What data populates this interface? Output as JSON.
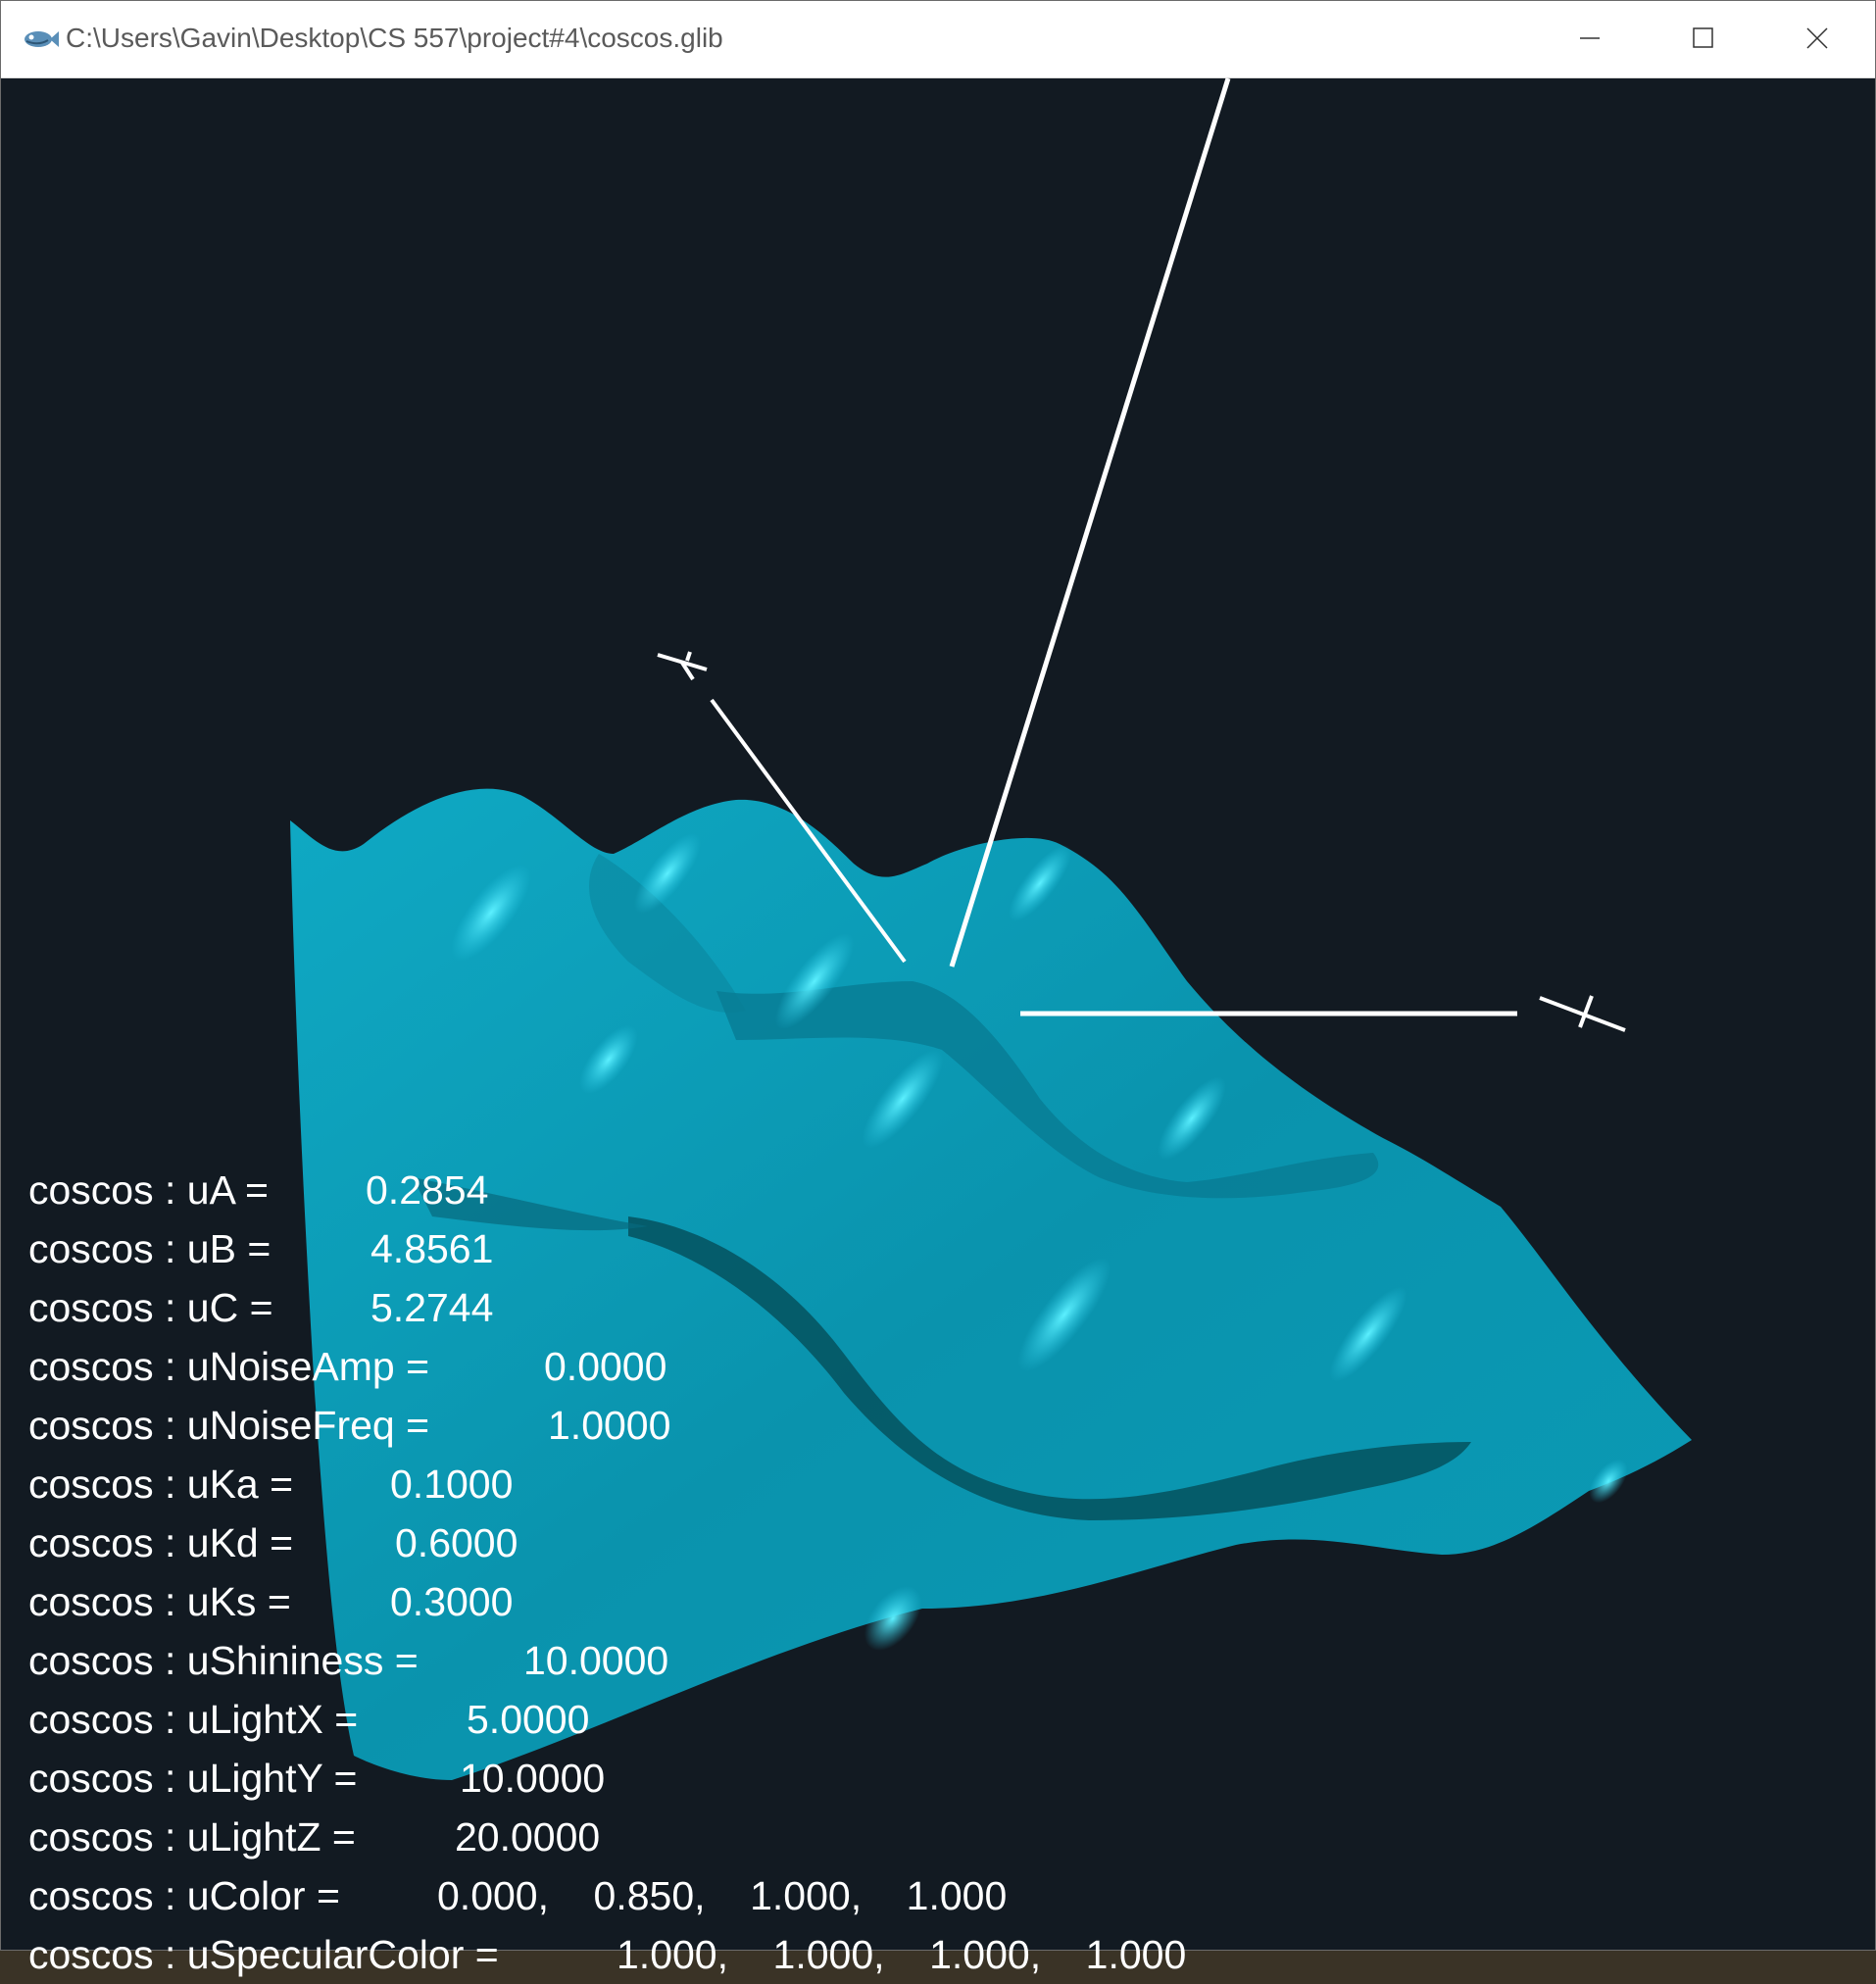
{
  "window": {
    "title": "C:\\Users\\Gavin\\Desktop\\CS 557\\project#4\\coscos.glib",
    "app_icon": "glman-fish-icon",
    "controls": [
      "minimize-icon",
      "maximize-icon",
      "close-icon"
    ]
  },
  "scene": {
    "axis_labels": {
      "x": "X",
      "y": "Y",
      "z": ""
    },
    "surface_color": "#0aa6c2",
    "highlight_color": "#4fe8ff",
    "background_color": "#121a22"
  },
  "readouts": [
    {
      "label": "coscos : uA =",
      "value": "0.2854"
    },
    {
      "label": "coscos : uB =",
      "value": "4.8561"
    },
    {
      "label": "coscos : uC =",
      "value": "5.2744"
    },
    {
      "label": "coscos : uNoiseAmp =",
      "value": "0.0000"
    },
    {
      "label": "coscos : uNoiseFreq =",
      "value": "1.0000"
    },
    {
      "label": "coscos : uKa =",
      "value": "0.1000"
    },
    {
      "label": "coscos : uKd =",
      "value": "0.6000"
    },
    {
      "label": "coscos : uKs =",
      "value": "0.3000"
    },
    {
      "label": "coscos : uShininess =",
      "value": "10.0000"
    },
    {
      "label": "coscos : uLightX =",
      "value": "5.0000"
    },
    {
      "label": "coscos : uLightY =",
      "value": "10.0000"
    },
    {
      "label": "coscos : uLightZ =",
      "value": "20.0000"
    },
    {
      "label": "coscos : uColor =",
      "value": "0.000,    0.850,    1.000,    1.000"
    },
    {
      "label": "coscos : uSpecularColor =",
      "value": "1.000,    1.000,    1.000,    1.000"
    }
  ]
}
